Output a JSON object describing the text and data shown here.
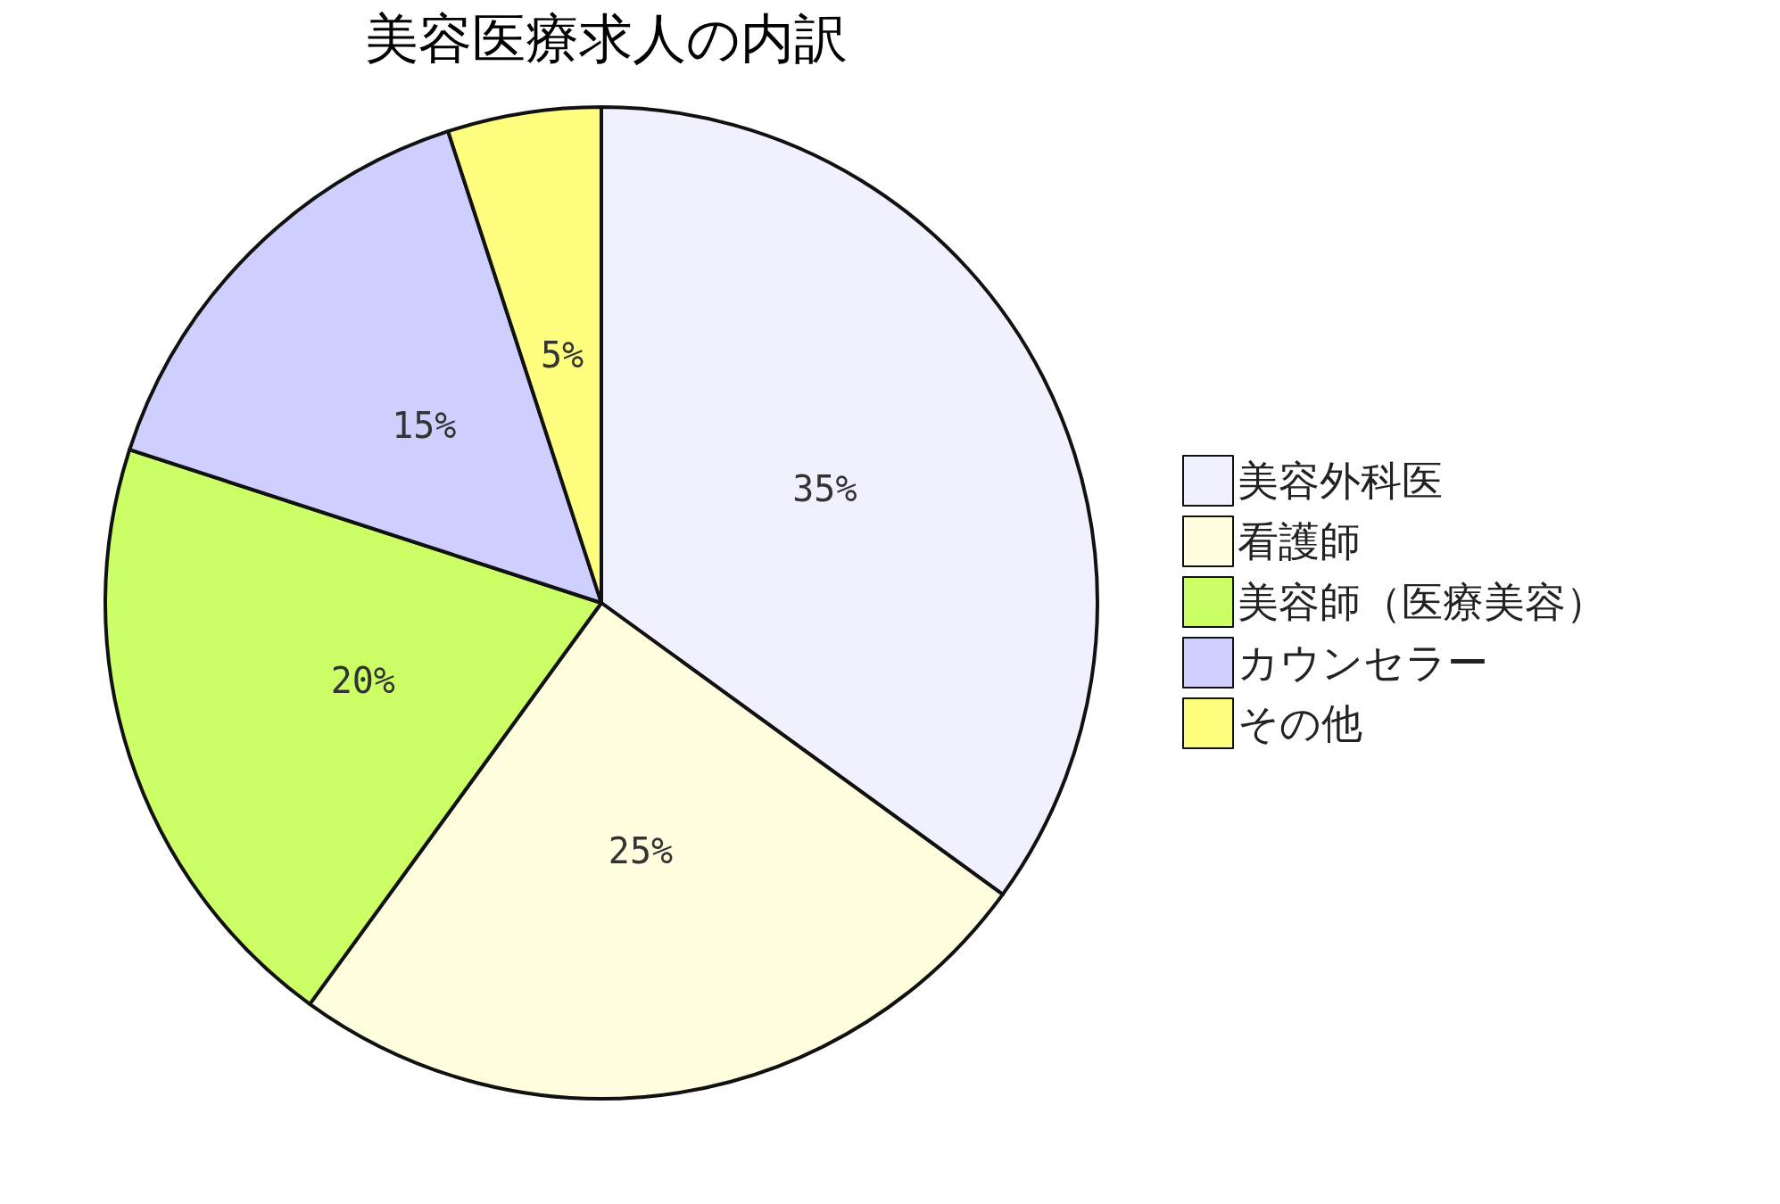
{
  "chart_data": {
    "type": "pie",
    "title": "美容医療求人の内訳",
    "categories": [
      "美容外科医",
      "看護師",
      "美容師（医療美容）",
      "カウンセラー",
      "その他"
    ],
    "values": [
      35,
      25,
      20,
      15,
      5
    ],
    "colors": [
      "#f0f0ff",
      "#ffffe0",
      "#ccff66",
      "#cfcfff",
      "#ffff7f"
    ],
    "value_labels": [
      "35%",
      "25%",
      "20%",
      "15%",
      "5%"
    ],
    "legend": "right"
  }
}
